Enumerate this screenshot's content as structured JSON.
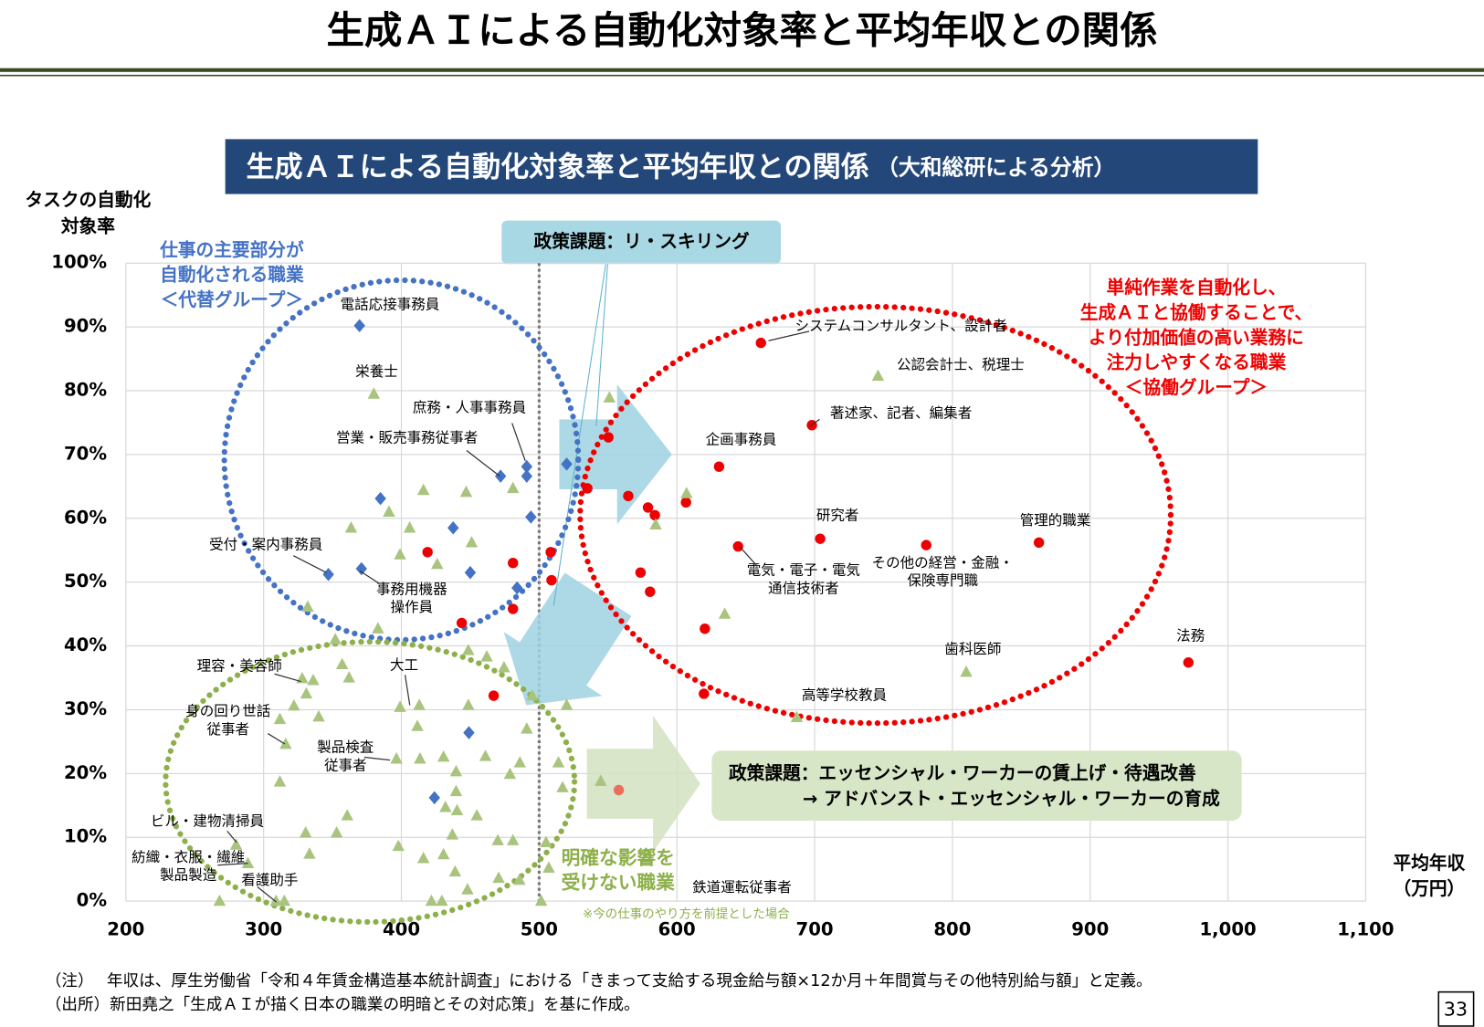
{
  "header": {
    "title": "生成ＡＩによる自動化対象率と平均年収との関係"
  },
  "chart_data": {
    "type": "scatter",
    "title": "生成ＡＩによる自動化対象率と平均年収との関係",
    "subtitle": "（大和総研による分析）",
    "y_label": [
      "タスクの自動化",
      "対象率"
    ],
    "x_label": [
      "平均年収",
      "（万円）"
    ],
    "xlim": [
      200,
      1100
    ],
    "xticks": [
      200,
      300,
      400,
      500,
      600,
      700,
      800,
      900,
      {
        "value": 1000,
        "label": "1,000"
      },
      {
        "value": 1100,
        "label": "1,100"
      }
    ],
    "ylim": [
      0,
      100
    ],
    "yticks": [
      {
        "value": 0,
        "label": "0%"
      },
      {
        "value": 10,
        "label": "10%"
      },
      {
        "value": 20,
        "label": "20%"
      },
      {
        "value": 30,
        "label": "30%"
      },
      {
        "value": 40,
        "label": "40%"
      },
      {
        "value": 50,
        "label": "50%"
      },
      {
        "value": 60,
        "label": "60%"
      },
      {
        "value": 70,
        "label": "70%"
      },
      {
        "value": 80,
        "label": "80%"
      },
      {
        "value": 90,
        "label": "90%"
      },
      {
        "value": 100,
        "label": "100%"
      }
    ],
    "grid": true,
    "reference_x": 500,
    "series": [
      {
        "color": "#4472c4",
        "marker": "diamond",
        "x": [
          369.6,
          384.8,
          347,
          371,
          437.6,
          450,
          472,
          491,
          491,
          494,
          520,
          484,
          449,
          424
        ],
        "values": [
          90.2,
          63.1,
          51.2,
          52.1,
          58.5,
          51.5,
          66.6,
          68.1,
          66.6,
          60.2,
          68.5,
          49.1,
          26.4,
          16.2
        ]
      },
      {
        "color": "#ee0000",
        "marker": "circle",
        "x": [
          661,
          698,
          630.6,
          550.3,
          535,
          564.7,
          579,
          584,
          606.6,
          644.4,
          704,
          781,
          862.8,
          971.3,
          573.6,
          580.5,
          620.3,
          619.6,
          419,
          481,
          508.4,
          509,
          481,
          443.8,
          467
        ],
        "values": [
          87.5,
          74.6,
          68.1,
          72.7,
          64.7,
          63.5,
          61.7,
          60.5,
          62.5,
          55.6,
          56.8,
          55.8,
          56.2,
          37.4,
          51.5,
          48.5,
          42.7,
          32.5,
          54.7,
          53,
          54.7,
          50.3,
          45.8,
          43.6,
          32.2
        ]
      },
      {
        "color": "#e8705a",
        "marker": "circle",
        "x": [
          557.8
        ],
        "values": [
          17.4
        ]
      },
      {
        "color": "#a9c47f",
        "marker": "triangle",
        "x": [
          380,
          746,
          551,
          607,
          584.6,
          634.7,
          810,
          687,
          416,
          447,
          481,
          391,
          406,
          363.5,
          451,
          399,
          426,
          332,
          352,
          383,
          448.6,
          462,
          474.5,
          357,
          362,
          328,
          336,
          331,
          322,
          340,
          311.8,
          399,
          413,
          411.6,
          448.6,
          491,
          495,
          520,
          316,
          311.8,
          396.4,
          413.5,
          430.6,
          461,
          486,
          478.8,
          514,
          517,
          544.7,
          439.7,
          439.7,
          432,
          440.4,
          454.8,
          360.7,
          353,
          330.5,
          333.3,
          397.8,
          437,
          470,
          481,
          416,
          430.6,
          439,
          448,
          470.6,
          485.7,
          507,
          505,
          268,
          309,
          315,
          421.8,
          429.4,
          501.5,
          280,
          288.6
        ],
        "values": [
          79.5,
          82.3,
          78.9,
          63.9,
          59,
          45,
          35.9,
          28.8,
          64.4,
          64.1,
          64.7,
          61,
          58.5,
          58.5,
          56.2,
          54.3,
          52.8,
          46.1,
          41,
          42.7,
          39.3,
          38.3,
          36.6,
          37.1,
          35,
          34.9,
          34.6,
          32.5,
          30.6,
          28.9,
          28.5,
          30.4,
          30.7,
          27.4,
          30.7,
          27,
          32.2,
          30.7,
          24.6,
          18.7,
          22.3,
          22.3,
          22.6,
          22.7,
          21.7,
          19.9,
          21.7,
          17.8,
          18.8,
          20.3,
          17.2,
          14.7,
          14.2,
          13.4,
          13.4,
          10.7,
          10.7,
          7.4,
          8.6,
          10.4,
          9.5,
          9.5,
          6.7,
          7.3,
          4.6,
          1.8,
          3.6,
          3.3,
          5.2,
          9.2,
          0,
          0,
          0,
          0,
          0,
          0,
          8.8,
          5.9
        ]
      }
    ],
    "annotations": [
      [
        "電話応接事務員"
      ],
      [
        "栄養士"
      ],
      [
        "庶務・人事事務員"
      ],
      [
        "営業・販売事務従事者"
      ],
      [
        "受付・案内事務員"
      ],
      [
        "事務用機器",
        "操作員"
      ],
      [
        "理容・美容師"
      ],
      [
        "大工"
      ],
      [
        "身の回り世話",
        "従事者"
      ],
      [
        "製品検査",
        "従事者"
      ],
      [
        "ビル・建物清掃員"
      ],
      [
        "紡織・衣服・繊維",
        "製品製造"
      ],
      [
        "看護助手"
      ],
      [
        "システムコンサルタント、設計者"
      ],
      [
        "公認会計士、税理士"
      ],
      [
        "著述家、記者、編集者"
      ],
      [
        "企画事務員"
      ],
      [
        "研究者"
      ],
      [
        "管理的職業"
      ],
      [
        "電気・電子・電気",
        "通信技術者"
      ],
      [
        "その他の経営・金融・",
        "保険専門職"
      ],
      [
        "法務"
      ],
      [
        "歯科医師"
      ],
      [
        "高等学校教員"
      ],
      [
        "鉄道運転従事者"
      ]
    ],
    "groups": {
      "substitute": [
        "仕事の主要部分が",
        "自動化される職業",
        "＜代替グループ＞"
      ],
      "collaborate": [
        "単純作業を自動化し、",
        "生成ＡＩと協働することで、",
        "より付加価値の高い業務に",
        "注力しやすくなる職業",
        "＜協働グループ＞"
      ],
      "unaffected": [
        "明確な影響を",
        "受けない職業"
      ],
      "unaffected_note": "※今の仕事のやり方を前提とした場合"
    },
    "policy_reskilling": "政策課題：リ・スキリング",
    "policy_essential": [
      "政策課題：エッセンシャル・ワーカーの賃上げ・待遇改善",
      "→ アドバンスト・エッセンシャル・ワーカーの育成"
    ]
  },
  "notes": [
    "（注）　 年収は、厚生労働省「令和４年賃金構造基本統計調査」における「きまって支給する現金給与額×12か月＋年間賞与その他特別給与額」と定義。",
    "（出所）新田堯之「生成ＡＩが描く日本の職業の明暗とその対応策」を基に作成。"
  ],
  "page_number": "33"
}
